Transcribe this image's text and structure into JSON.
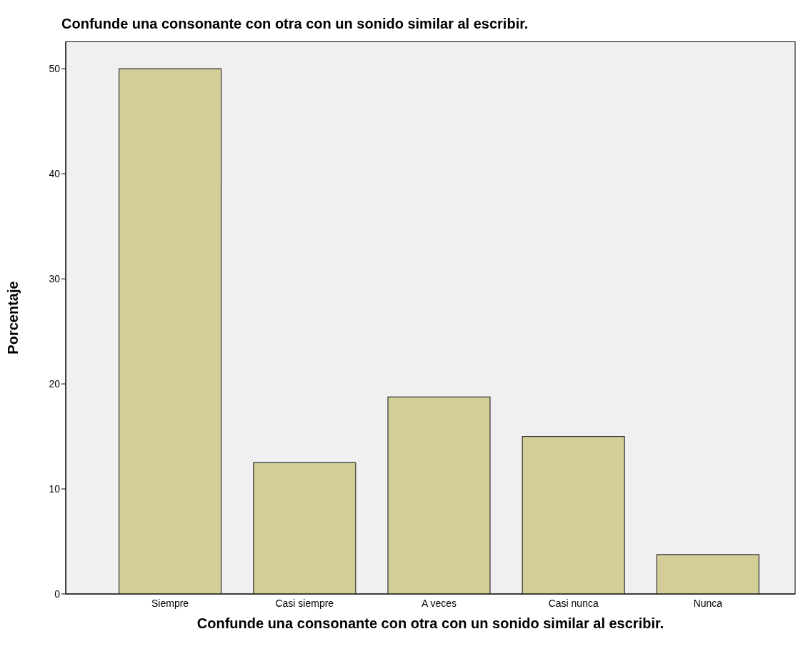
{
  "chart_data": {
    "type": "bar",
    "title": "Confunde una consonante con otra con un sonido similar al escribir.",
    "xlabel": "Confunde una consonante con otra con un sonido similar al escribir.",
    "ylabel": "Porcentaje",
    "categories": [
      "Siempre",
      "Casi siempre",
      "A veces",
      "Casi nunca",
      "Nunca"
    ],
    "values": [
      50,
      12.5,
      18.75,
      15,
      3.75
    ],
    "color": "#d3ce97",
    "ylim": [
      0,
      52.6
    ],
    "yticks": [
      0,
      10,
      20,
      30,
      40,
      50
    ],
    "grid": false
  }
}
